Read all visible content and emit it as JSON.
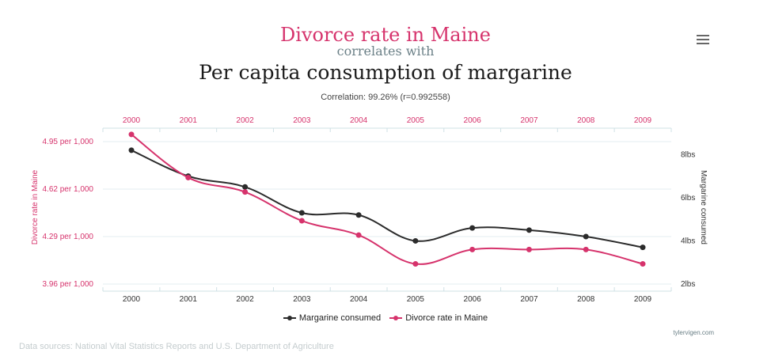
{
  "header": {
    "title_line1": "Divorce rate in Maine",
    "title_line2": "correlates with",
    "title_line3": "Per capita consumption of margarine",
    "correlation": "Correlation: 99.26% (r=0.992558)"
  },
  "menu": {
    "icon": "hamburger-menu-icon"
  },
  "chart_data": {
    "type": "line",
    "x": [
      "2000",
      "2001",
      "2002",
      "2003",
      "2004",
      "2005",
      "2006",
      "2007",
      "2008",
      "2009"
    ],
    "series": [
      {
        "name": "Margarine consumed",
        "axis": "right",
        "color": "#2b2b2b",
        "unit": "lbs",
        "values": [
          8.2,
          7.0,
          6.5,
          5.3,
          5.2,
          4.0,
          4.6,
          4.5,
          4.2,
          3.7
        ]
      },
      {
        "name": "Divorce rate in Maine",
        "axis": "left",
        "color": "#d6336c",
        "unit": "per 1,000",
        "values": [
          5.0,
          4.7,
          4.6,
          4.4,
          4.3,
          4.1,
          4.2,
          4.2,
          4.2,
          4.1
        ]
      }
    ],
    "left_axis": {
      "label": "Divorce rate in Maine",
      "ticks": [
        4.95,
        4.62,
        4.29,
        3.96
      ],
      "tick_labels": [
        "4.95 per 1,000",
        "4.62 per 1,000",
        "4.29 per 1,000",
        "3.96 per 1,000"
      ],
      "range": [
        3.96,
        4.95
      ]
    },
    "right_axis": {
      "label": "Margarine consumed",
      "ticks": [
        8,
        6,
        4,
        2
      ],
      "tick_labels": [
        "8lbs",
        "6lbs",
        "4lbs",
        "2lbs"
      ],
      "range": [
        2,
        8.6
      ]
    },
    "grid": true,
    "legend": "bottom"
  },
  "footer": {
    "credit": "tylervigen.com",
    "sources": "Data sources: National Vital Statistics Reports and U.S. Department of Agriculture"
  }
}
